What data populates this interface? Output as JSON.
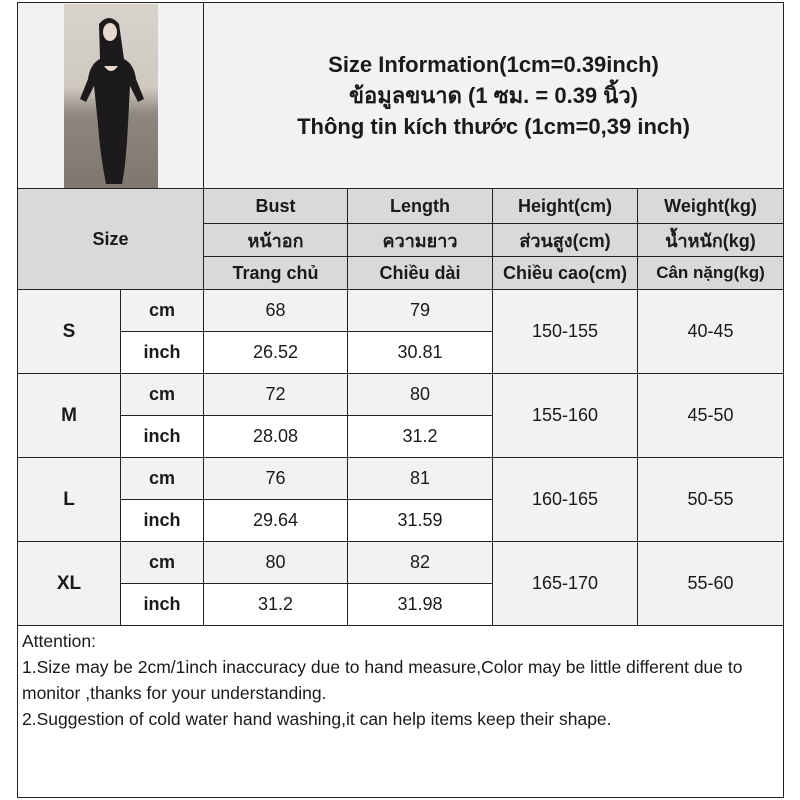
{
  "title": {
    "line1": "Size Information(1cm=0.39inch)",
    "line2": "ข้อมูลขนาด (1 ซม. = 0.39 นิ้ว)",
    "line3": "Thông tin kích thước (1cm=0,39 inch)"
  },
  "size_label": "Size",
  "columns": [
    {
      "en": "Bust",
      "th": "หน้าอก",
      "vi": "Trang chủ"
    },
    {
      "en": "Length",
      "th": "ความยาว",
      "vi": "Chiều dài"
    },
    {
      "en": "Height(cm)",
      "th": "ส่วนสูง(cm)",
      "vi": "Chiều cao(cm)"
    },
    {
      "en": "Weight(kg)",
      "th": "น้ำหนัก(kg)",
      "vi": "Cân nặng(kg)"
    }
  ],
  "units": {
    "cm": "cm",
    "inch": "inch"
  },
  "rows": [
    {
      "size": "S",
      "bust_cm": "68",
      "length_cm": "79",
      "bust_inch": "26.52",
      "length_inch": "30.81",
      "height": "150-155",
      "weight": "40-45"
    },
    {
      "size": "M",
      "bust_cm": "72",
      "length_cm": "80",
      "bust_inch": "28.08",
      "length_inch": "31.2",
      "height": "155-160",
      "weight": "45-50"
    },
    {
      "size": "L",
      "bust_cm": "76",
      "length_cm": "81",
      "bust_inch": "29.64",
      "length_inch": "31.59",
      "height": "160-165",
      "weight": "50-55"
    },
    {
      "size": "XL",
      "bust_cm": "80",
      "length_cm": "82",
      "bust_inch": "31.2",
      "length_inch": "31.98",
      "height": "165-170",
      "weight": "55-60"
    }
  ],
  "attention": {
    "heading": "Attention:",
    "note1": "1.Size may be 2cm/1inch inaccuracy due to hand measure,Color may be little different due to monitor ,thanks for your understanding.",
    "note2": "2.Suggestion of cold water hand washing,it can help items keep their shape."
  }
}
